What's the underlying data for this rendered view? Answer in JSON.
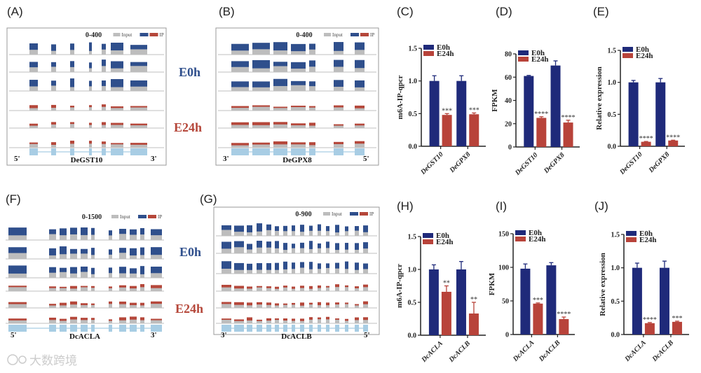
{
  "panel_labels": [
    "(A)",
    "(B)",
    "(C)",
    "(D)",
    "(E)",
    "(F)",
    "(G)",
    "(H)",
    "(I)",
    "(J)"
  ],
  "conditions": {
    "e0h": "E0h",
    "e24h": "E24h"
  },
  "colors": {
    "e0h": "#1f2a7a",
    "e24h": "#b8433a",
    "input": "#bdbdbd",
    "ip_blue": "#2f4f8c",
    "ip_red": "#b5473a",
    "gene": "#a8cde4",
    "e0h_text": "#2f4f8c",
    "e24h_text": "#b5473a"
  },
  "tracks": [
    {
      "panel": "(A)",
      "range": "0-400",
      "legend_input": "Input",
      "legend_ip": "IP",
      "gene": "DeGST10",
      "left_end": "5'",
      "right_end": "3'"
    },
    {
      "panel": "(B)",
      "range": "0-400",
      "legend_input": "Input",
      "legend_ip": "IP",
      "gene": "DeGPX8",
      "left_end": "3'",
      "right_end": "5'"
    },
    {
      "panel": "(F)",
      "range": "0-1500",
      "legend_input": "Input",
      "legend_ip": "IP",
      "gene": "DcACLA",
      "left_end": "5'",
      "right_end": "3'"
    },
    {
      "panel": "(G)",
      "range": "0-900",
      "legend_input": "Input",
      "legend_ip": "IP",
      "gene": "DcACLB",
      "left_end": "3'",
      "right_end": "5'"
    }
  ],
  "watermark": "大数跨境",
  "chart_data": [
    {
      "panel": "(C)",
      "type": "bar",
      "ylabel": "m6A-IP-qpcr",
      "categories": [
        "DeGST10",
        "DeGPX8"
      ],
      "ylim": [
        0,
        1.5
      ],
      "yticks": [
        "0.0",
        "0.5",
        "1.0",
        "1.5"
      ],
      "series": [
        {
          "name": "E0h",
          "values": [
            1.0,
            1.0
          ],
          "errors": [
            0.08,
            0.08
          ]
        },
        {
          "name": "E24h",
          "values": [
            0.48,
            0.49
          ],
          "errors": [
            0.02,
            0.02
          ]
        }
      ],
      "annotations": [
        "***",
        "***"
      ]
    },
    {
      "panel": "(D)",
      "type": "bar",
      "ylabel": "FPKM",
      "categories": [
        "DeGST10",
        "DeGPX8"
      ],
      "ylim": [
        0,
        80
      ],
      "yticks": [
        "0",
        "20",
        "40",
        "60",
        "80"
      ],
      "series": [
        {
          "name": "E0h",
          "values": [
            61,
            70
          ],
          "errors": [
            0.5,
            4
          ]
        },
        {
          "name": "E24h",
          "values": [
            25,
            21
          ],
          "errors": [
            1,
            2
          ]
        }
      ],
      "annotations": [
        "****",
        "****"
      ]
    },
    {
      "panel": "(E)",
      "type": "bar",
      "ylabel": "Relative expression",
      "categories": [
        "DeGST10",
        "DeGPX8"
      ],
      "ylim": [
        0,
        1.5
      ],
      "yticks": [
        "0.0",
        "0.5",
        "1.0",
        "1.5"
      ],
      "series": [
        {
          "name": "E0h",
          "values": [
            1.0,
            1.0
          ],
          "errors": [
            0.03,
            0.06
          ]
        },
        {
          "name": "E24h",
          "values": [
            0.07,
            0.09
          ],
          "errors": [
            0.005,
            0.005
          ]
        }
      ],
      "annotations": [
        "****",
        "****"
      ]
    },
    {
      "panel": "(H)",
      "type": "bar",
      "ylabel": "m6A-IP-qpcr",
      "categories": [
        "DcACLA",
        "DcACLB"
      ],
      "ylim": [
        0,
        1.5
      ],
      "yticks": [
        "0.0",
        "0.5",
        "1.0",
        "1.5"
      ],
      "series": [
        {
          "name": "E0h",
          "values": [
            1.0,
            1.0
          ],
          "errors": [
            0.07,
            0.12
          ]
        },
        {
          "name": "E24h",
          "values": [
            0.66,
            0.33
          ],
          "errors": [
            0.09,
            0.17
          ]
        }
      ],
      "annotations": [
        "**",
        "**"
      ]
    },
    {
      "panel": "(I)",
      "type": "bar",
      "ylabel": "FPKM",
      "categories": [
        "DcACLA",
        "DcACLB"
      ],
      "ylim": [
        0,
        150
      ],
      "yticks": [
        "0",
        "50",
        "100",
        "150"
      ],
      "series": [
        {
          "name": "E0h",
          "values": [
            98,
            103
          ],
          "errors": [
            7,
            4
          ]
        },
        {
          "name": "E24h",
          "values": [
            46,
            23
          ],
          "errors": [
            1,
            3
          ]
        }
      ],
      "annotations": [
        "***",
        "****"
      ]
    },
    {
      "panel": "(J)",
      "type": "bar",
      "ylabel": "Relative expression",
      "categories": [
        "DcACLA",
        "DcACLB"
      ],
      "ylim": [
        0,
        1.5
      ],
      "yticks": [
        "0.0",
        "0.5",
        "1.0",
        "1.5"
      ],
      "series": [
        {
          "name": "E0h",
          "values": [
            1.0,
            1.0
          ],
          "errors": [
            0.07,
            0.1
          ]
        },
        {
          "name": "E24h",
          "values": [
            0.17,
            0.19
          ],
          "errors": [
            0.01,
            0.01
          ]
        }
      ],
      "annotations": [
        "****",
        "***"
      ]
    }
  ]
}
